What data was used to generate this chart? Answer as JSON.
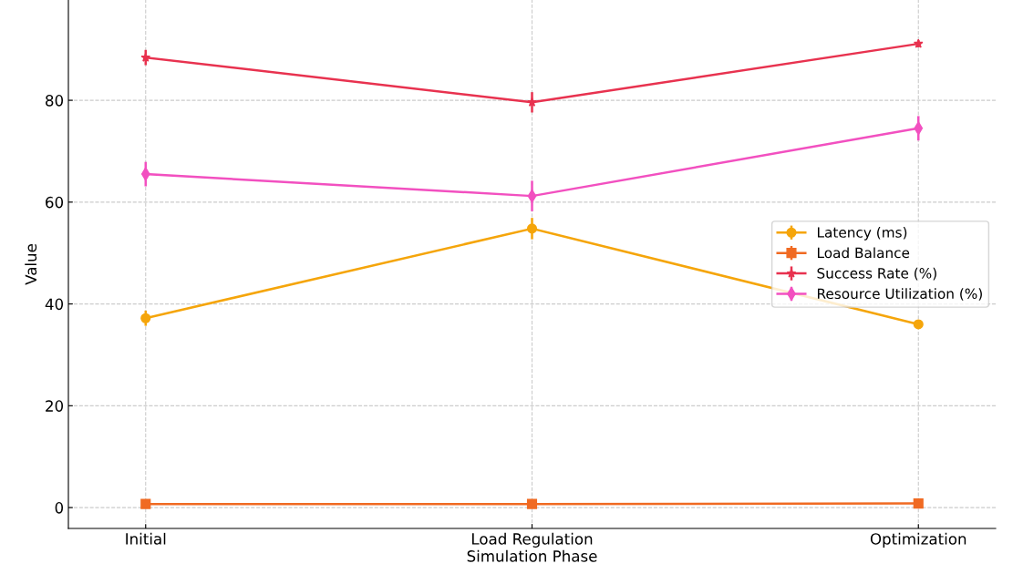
{
  "chart_data": {
    "type": "line",
    "xlabel": "Simulation Phase",
    "ylabel": "Value",
    "categories": [
      "Initial",
      "Load Regulation",
      "Optimization"
    ],
    "series": [
      {
        "name": "Latency (ms)",
        "color": "#f5a50a",
        "marker": "circle",
        "values": [
          37.2,
          54.8,
          36.0
        ],
        "errors": [
          1.5,
          2.1,
          0.5
        ]
      },
      {
        "name": "Load Balance",
        "color": "#f06a22",
        "marker": "square",
        "values": [
          0.7,
          0.7,
          0.8
        ],
        "errors": [
          0.3,
          0.3,
          0.3
        ]
      },
      {
        "name": "Success Rate (%)",
        "color": "#e8324f",
        "marker": "star",
        "values": [
          88.4,
          79.6,
          91.1
        ],
        "errors": [
          1.5,
          2.0,
          0.7
        ]
      },
      {
        "name": "Resource Utilization (%)",
        "color": "#f250c0",
        "marker": "diamond",
        "values": [
          65.5,
          61.2,
          74.5
        ],
        "errors": [
          2.4,
          3.0,
          2.4
        ]
      }
    ],
    "ylim": [
      -4.1,
      99.7
    ],
    "yticks": [
      0,
      20,
      40,
      60,
      80
    ],
    "grid": true,
    "legend": "right",
    "line_style": "solid"
  }
}
